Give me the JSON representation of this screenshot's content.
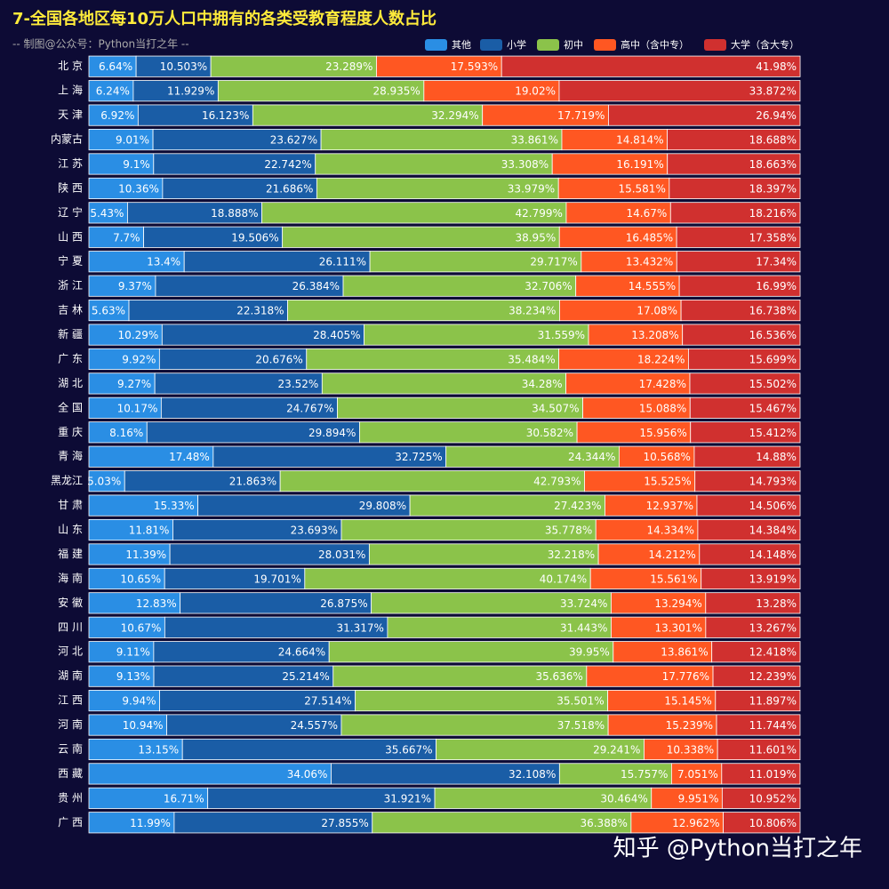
{
  "chart_data": {
    "type": "stacked-bar-horizontal",
    "title": "7-全国各地区每10万人口中拥有的各类受教育程度人数占比",
    "subtitle": "-- 制图@公众号：Python当打之年 --",
    "watermark": "知乎 @Python当打之年",
    "xlim": [
      0,
      100
    ],
    "categories": [
      "北 京",
      "上 海",
      "天 津",
      "内蒙古",
      "江 苏",
      "陕 西",
      "辽 宁",
      "山 西",
      "宁 夏",
      "浙 江",
      "吉 林",
      "新 疆",
      "广 东",
      "湖 北",
      "全 国",
      "重 庆",
      "青 海",
      "黑龙江",
      "甘 肃",
      "山 东",
      "福 建",
      "海 南",
      "安 徽",
      "四 川",
      "河 北",
      "湖 南",
      "江 西",
      "河 南",
      "云 南",
      "西 藏",
      "贵 州",
      "广 西"
    ],
    "series": [
      {
        "name": "其他",
        "color": "#2a8ee4",
        "values": [
          6.64,
          6.24,
          6.92,
          9.01,
          9.1,
          10.36,
          5.43,
          7.7,
          13.4,
          9.37,
          5.63,
          10.29,
          9.92,
          9.27,
          10.17,
          8.16,
          17.48,
          5.03,
          15.33,
          11.81,
          11.39,
          10.65,
          12.83,
          10.67,
          9.11,
          9.13,
          9.94,
          10.94,
          13.15,
          34.06,
          16.71,
          11.99
        ],
        "value_labels": [
          "6.64%",
          "6.24%",
          "6.92%",
          "9.01%",
          "9.1%",
          "10.36%",
          "5.43%",
          "7.7%",
          "13.4%",
          "9.37%",
          "5.63%",
          "10.29%",
          "9.92%",
          "9.27%",
          "10.17%",
          "8.16%",
          "17.48%",
          "5.03%",
          "15.33%",
          "11.81%",
          "11.39%",
          "10.65%",
          "12.83%",
          "10.67%",
          "9.11%",
          "9.13%",
          "9.94%",
          "10.94%",
          "13.15%",
          "34.06%",
          "16.71%",
          "11.99%"
        ]
      },
      {
        "name": "小学",
        "color": "#1a5da6",
        "values": [
          10.503,
          11.929,
          16.123,
          23.627,
          22.742,
          21.686,
          18.888,
          19.506,
          26.111,
          26.384,
          22.318,
          28.405,
          20.676,
          23.52,
          24.767,
          29.894,
          32.725,
          21.863,
          29.808,
          23.693,
          28.031,
          19.701,
          26.875,
          31.317,
          24.664,
          25.214,
          27.514,
          24.557,
          35.667,
          32.108,
          31.921,
          27.855
        ],
        "value_labels": [
          "10.503%",
          "11.929%",
          "16.123%",
          "23.627%",
          "22.742%",
          "21.686%",
          "18.888%",
          "19.506%",
          "26.111%",
          "26.384%",
          "22.318%",
          "28.405%",
          "20.676%",
          "23.52%",
          "24.767%",
          "29.894%",
          "32.725%",
          "21.863%",
          "29.808%",
          "23.693%",
          "28.031%",
          "19.701%",
          "26.875%",
          "31.317%",
          "24.664%",
          "25.214%",
          "27.514%",
          "24.557%",
          "35.667%",
          "32.108%",
          "31.921%",
          "27.855%"
        ]
      },
      {
        "name": "初中",
        "color": "#8bc34a",
        "values": [
          23.289,
          28.935,
          32.294,
          33.861,
          33.308,
          33.979,
          42.799,
          38.95,
          29.717,
          32.706,
          38.234,
          31.559,
          35.484,
          34.28,
          34.507,
          30.582,
          24.344,
          42.793,
          27.423,
          35.778,
          32.218,
          40.174,
          33.724,
          31.443,
          39.95,
          35.636,
          35.501,
          37.518,
          29.241,
          15.757,
          30.464,
          36.388
        ],
        "value_labels": [
          "23.289%",
          "28.935%",
          "32.294%",
          "33.861%",
          "33.308%",
          "33.979%",
          "42.799%",
          "38.95%",
          "29.717%",
          "32.706%",
          "38.234%",
          "31.559%",
          "35.484%",
          "34.28%",
          "34.507%",
          "30.582%",
          "24.344%",
          "42.793%",
          "27.423%",
          "35.778%",
          "32.218%",
          "40.174%",
          "33.724%",
          "31.443%",
          "39.95%",
          "35.636%",
          "35.501%",
          "37.518%",
          "29.241%",
          "15.757%",
          "30.464%",
          "36.388%"
        ]
      },
      {
        "name": "高中（含中专）",
        "color": "#ff5722",
        "values": [
          17.593,
          19.02,
          17.719,
          14.814,
          16.191,
          15.581,
          14.67,
          16.485,
          13.432,
          14.555,
          17.08,
          13.208,
          18.224,
          17.428,
          15.088,
          15.956,
          10.568,
          15.525,
          12.937,
          14.334,
          14.212,
          15.561,
          13.294,
          13.301,
          13.861,
          17.776,
          15.145,
          15.239,
          10.338,
          7.051,
          9.951,
          12.962
        ],
        "value_labels": [
          "17.593%",
          "19.02%",
          "17.719%",
          "14.814%",
          "16.191%",
          "15.581%",
          "14.67%",
          "16.485%",
          "13.432%",
          "14.555%",
          "17.08%",
          "13.208%",
          "18.224%",
          "17.428%",
          "15.088%",
          "15.956%",
          "10.568%",
          "15.525%",
          "12.937%",
          "14.334%",
          "14.212%",
          "15.561%",
          "13.294%",
          "13.301%",
          "13.861%",
          "17.776%",
          "15.145%",
          "15.239%",
          "10.338%",
          "7.051%",
          "9.951%",
          "12.962%"
        ]
      },
      {
        "name": "大学（含大专）",
        "color": "#d0302f",
        "values": [
          41.98,
          33.872,
          26.94,
          18.688,
          18.663,
          18.397,
          18.216,
          17.358,
          17.34,
          16.99,
          16.738,
          16.536,
          15.699,
          15.502,
          15.467,
          15.412,
          14.88,
          14.793,
          14.506,
          14.384,
          14.148,
          13.919,
          13.28,
          13.267,
          12.418,
          12.239,
          11.897,
          11.744,
          11.601,
          11.019,
          10.952,
          10.806
        ],
        "value_labels": [
          "41.98%",
          "33.872%",
          "26.94%",
          "18.688%",
          "18.663%",
          "18.397%",
          "18.216%",
          "17.358%",
          "17.34%",
          "16.99%",
          "16.738%",
          "16.536%",
          "15.699%",
          "15.502%",
          "15.467%",
          "15.412%",
          "14.88%",
          "14.793%",
          "14.506%",
          "14.384%",
          "14.148%",
          "13.919%",
          "13.28%",
          "13.267%",
          "12.418%",
          "12.239%",
          "11.897%",
          "11.744%",
          "11.601%",
          "11.019%",
          "10.952%",
          "10.806%"
        ]
      }
    ]
  }
}
